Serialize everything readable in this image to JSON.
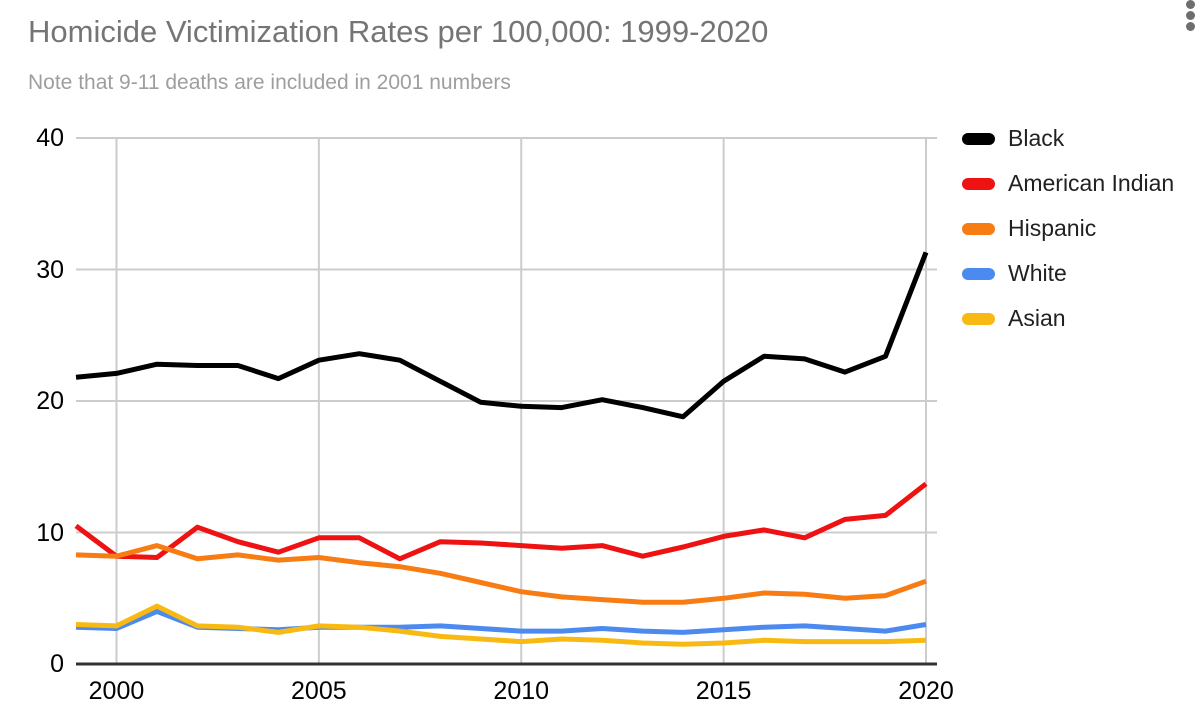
{
  "chart": {
    "title": "Homicide Victimization Rates per 100,000: 1999-2020",
    "subtitle": "Note that 9-11 deaths are included in 2001 numbers"
  },
  "menu": {
    "icon": "vertical-ellipsis"
  },
  "colors": {
    "title_text": "#757575",
    "subtitle_text": "#9e9e9e",
    "gridline": "#cccccc",
    "axis_line": "#333333",
    "tick_text": "#000000",
    "legend_text": "#212121"
  },
  "chart_data": {
    "type": "line",
    "title": "Homicide Victimization Rates per 100,000: 1999-2020",
    "subtitle": "Note that 9-11 deaths are included in 2001 numbers",
    "xlabel": "",
    "ylabel": "",
    "x": [
      1999,
      2000,
      2001,
      2002,
      2003,
      2004,
      2005,
      2006,
      2007,
      2008,
      2009,
      2010,
      2011,
      2012,
      2013,
      2014,
      2015,
      2016,
      2017,
      2018,
      2019,
      2020
    ],
    "xticks": [
      2000,
      2005,
      2010,
      2015,
      2020
    ],
    "yticks": [
      0,
      10,
      20,
      30,
      40
    ],
    "ylim": [
      0,
      40
    ],
    "xlim": [
      1999,
      2020
    ],
    "grid": true,
    "legend_position": "right",
    "series": [
      {
        "name": "Black",
        "color": "#000000",
        "values": [
          21.8,
          22.1,
          22.8,
          22.7,
          22.7,
          21.7,
          23.1,
          23.6,
          23.1,
          21.5,
          19.9,
          19.6,
          19.5,
          20.1,
          19.5,
          18.8,
          21.5,
          23.4,
          23.2,
          22.2,
          23.4,
          31.3
        ]
      },
      {
        "name": "American Indian",
        "color": "#ee1212",
        "values": [
          10.5,
          8.2,
          8.1,
          10.4,
          9.3,
          8.5,
          9.6,
          9.6,
          8.0,
          9.3,
          9.2,
          9.0,
          8.8,
          9.0,
          8.2,
          8.9,
          9.7,
          10.2,
          9.6,
          11.0,
          11.3,
          13.7
        ]
      },
      {
        "name": "Hispanic",
        "color": "#f87c14",
        "values": [
          8.3,
          8.2,
          9.0,
          8.0,
          8.3,
          7.9,
          8.1,
          7.7,
          7.4,
          6.9,
          6.2,
          5.5,
          5.1,
          4.9,
          4.7,
          4.7,
          5.0,
          5.4,
          5.3,
          5.0,
          5.2,
          6.3
        ]
      },
      {
        "name": "White",
        "color": "#4d8af0",
        "values": [
          2.8,
          2.7,
          4.0,
          2.8,
          2.7,
          2.6,
          2.8,
          2.8,
          2.8,
          2.9,
          2.7,
          2.5,
          2.5,
          2.7,
          2.5,
          2.4,
          2.6,
          2.8,
          2.9,
          2.7,
          2.5,
          3.0
        ]
      },
      {
        "name": "Asian",
        "color": "#f8ba12",
        "values": [
          3.0,
          2.9,
          4.4,
          2.9,
          2.8,
          2.4,
          2.9,
          2.8,
          2.5,
          2.1,
          1.9,
          1.7,
          1.9,
          1.8,
          1.6,
          1.5,
          1.6,
          1.8,
          1.7,
          1.7,
          1.7,
          1.8
        ]
      }
    ]
  }
}
